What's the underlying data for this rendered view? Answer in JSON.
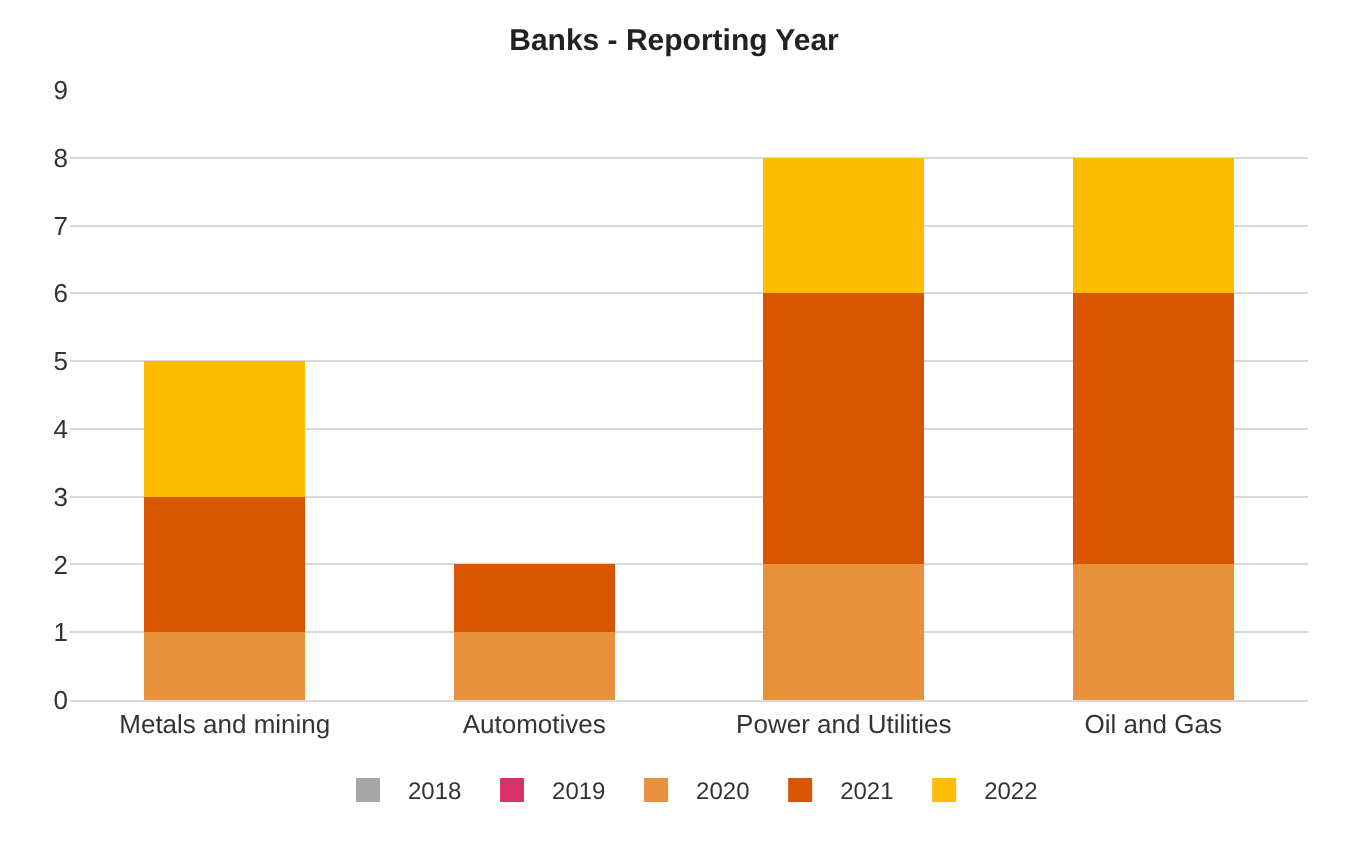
{
  "chart_data": {
    "type": "bar",
    "title": "Banks - Reporting Year",
    "stacked": true,
    "categories": [
      "Metals and mining",
      "Automotives",
      "Power and Utilities",
      "Oil and Gas"
    ],
    "series": [
      {
        "name": "2018",
        "color": "#a5a5a5",
        "values": [
          0,
          0,
          0,
          0
        ]
      },
      {
        "name": "2019",
        "color": "#d9306b",
        "values": [
          0,
          0,
          0,
          0
        ]
      },
      {
        "name": "2020",
        "color": "#e8913d",
        "values": [
          1,
          1,
          2,
          2
        ]
      },
      {
        "name": "2021",
        "color": "#d95600",
        "values": [
          2,
          1,
          4,
          4
        ]
      },
      {
        "name": "2022",
        "color": "#fdbd00",
        "values": [
          2,
          0,
          2,
          2
        ]
      }
    ],
    "ylim": [
      0,
      9
    ],
    "yticks": [
      0,
      1,
      2,
      3,
      4,
      5,
      6,
      7,
      8,
      9
    ],
    "grid": "y",
    "legend": "bottom"
  }
}
